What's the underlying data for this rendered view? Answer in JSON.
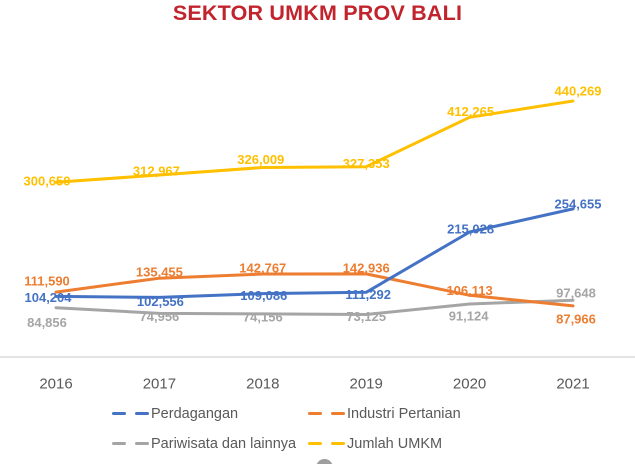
{
  "title": "SEKTOR UMKM PROV BALI",
  "title_color": "#C1242D",
  "chart_data": {
    "type": "line",
    "categories": [
      "2016",
      "2017",
      "2018",
      "2019",
      "2020",
      "2021"
    ],
    "series": [
      {
        "name": "Perdagangan",
        "color": "#4472C4",
        "values": [
          104204,
          102556,
          109086,
          111292,
          215028,
          254655
        ]
      },
      {
        "name": "Industri Pertanian",
        "color": "#ED7D31",
        "values": [
          111590,
          135455,
          142767,
          142936,
          106113,
          87966
        ]
      },
      {
        "name": "Pariwisata dan lainnya",
        "color": "#A5A5A5",
        "values": [
          84856,
          74956,
          74156,
          73125,
          91124,
          97648
        ]
      },
      {
        "name": "Jumlah UMKM",
        "color": "#FFC000",
        "values": [
          300650,
          312967,
          326009,
          327353,
          412265,
          440269
        ]
      }
    ],
    "title": "SEKTOR UMKM PROV BALI",
    "xlabel": "",
    "ylabel": "",
    "ylim": [
      0,
      516000
    ],
    "grid": false,
    "y_axis_visible": false,
    "data_labels": true,
    "legend_position": "bottom",
    "axis_line_color": "#DCDCDC",
    "tick_label_color": "#595959"
  }
}
